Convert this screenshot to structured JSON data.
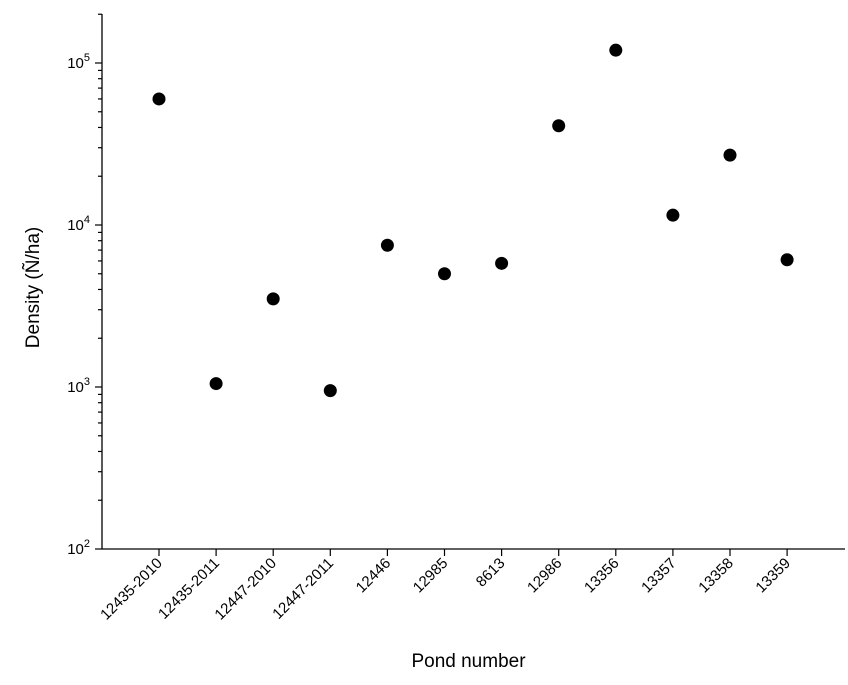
{
  "chart_data": {
    "type": "scatter",
    "title": "",
    "xlabel": "Pond number",
    "ylabel": "Density (Ñ/ha)",
    "yscale": "log",
    "ylim": [
      100,
      200000
    ],
    "yticks": [
      {
        "value": 100,
        "base": "10",
        "exp": "2"
      },
      {
        "value": 1000,
        "base": "10",
        "exp": "3"
      },
      {
        "value": 10000,
        "base": "10",
        "exp": "4"
      },
      {
        "value": 100000,
        "base": "10",
        "exp": "5"
      }
    ],
    "categories": [
      "12435-2010",
      "12435-2011",
      "12447-2010",
      "12447-2011",
      "12446",
      "12985",
      "8613",
      "12986",
      "13356",
      "13357",
      "13358",
      "13359"
    ],
    "values": [
      60000,
      1050,
      3500,
      950,
      7500,
      5000,
      5800,
      41000,
      120000,
      11500,
      27000,
      6100
    ],
    "grid": false,
    "marker_color": "#000000"
  }
}
